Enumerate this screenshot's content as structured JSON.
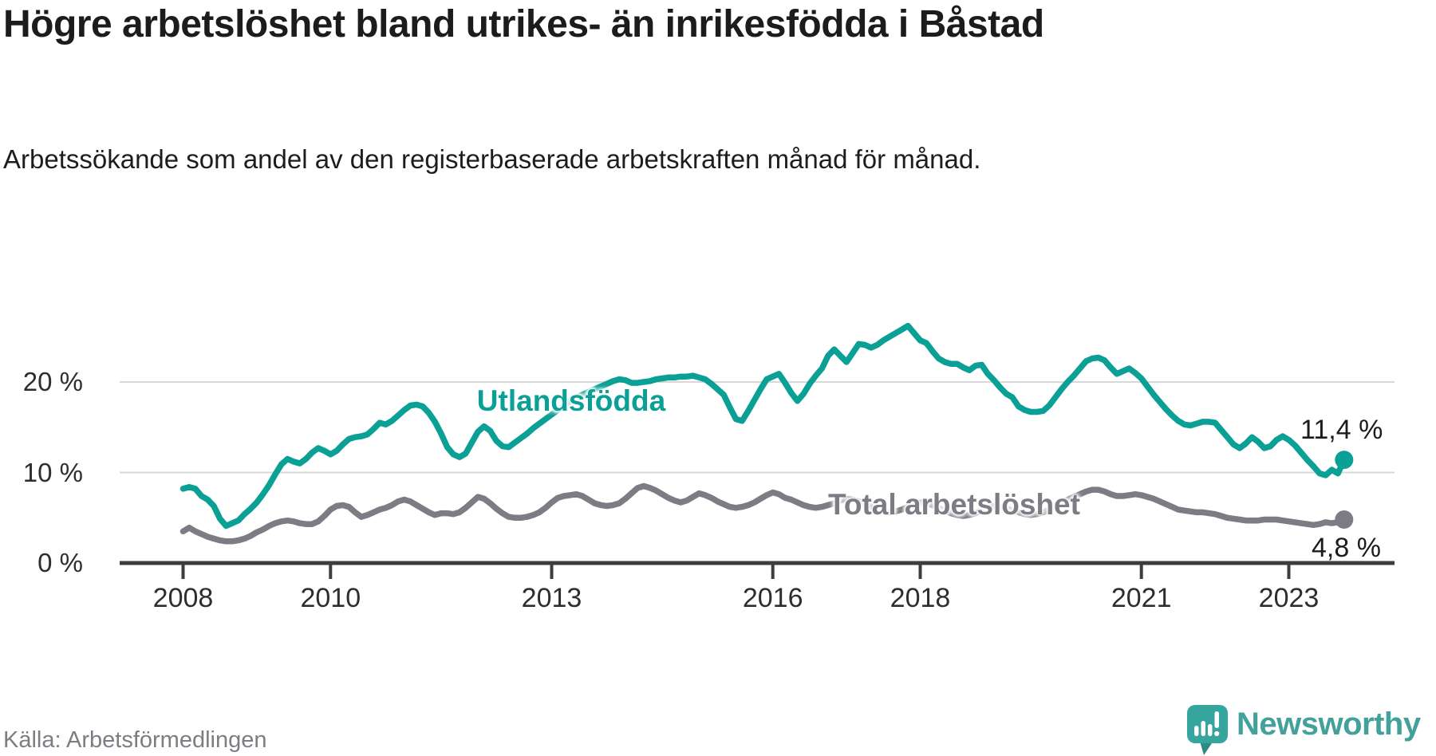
{
  "header": {
    "title": "Högre arbetslöshet bland utrikes- än inrikesfödda i Båstad",
    "subtitle": "Arbetssökande som andel av den registerbaserade arbetskraften månad för månad."
  },
  "style": {
    "accent_teal": "#0aa096",
    "line_gray": "#7d7b83",
    "axis_color": "#3d3d3d",
    "grid_color": "#d8d8d8",
    "text_color": "#1c1c1b",
    "brand_color": "#43a19b"
  },
  "chart_data": {
    "type": "line",
    "title": "Högre arbetslöshet bland utrikes- än inrikesfödda i Båstad",
    "subtitle": "Arbetssökande som andel av den registerbaserade arbetskraften månad för månad.",
    "x_unit": "month",
    "x_start": "2008-01",
    "x_end": "2023-10",
    "grid": "horizontal",
    "legend_position": "inline-labels",
    "x_axis": {
      "tick_years": [
        2008,
        2010,
        2013,
        2016,
        2018,
        2021,
        2023
      ]
    },
    "y_axis": {
      "unit": "%",
      "range": [
        0,
        27.5
      ],
      "ticks": [
        {
          "label": "0 %",
          "value": 0
        },
        {
          "label": "10 %",
          "value": 10
        },
        {
          "label": "20 %",
          "value": 20
        }
      ]
    },
    "series": [
      {
        "name": "Utlandsfödda",
        "slug": "utlandsfodda",
        "color": "#0aa096",
        "end_label": "11,4 %",
        "end_value": 11.4,
        "values": [
          8.2,
          8.4,
          8.2,
          7.4,
          7.0,
          6.3,
          4.9,
          4.1,
          4.4,
          4.7,
          5.4,
          6.0,
          6.7,
          7.6,
          8.6,
          9.8,
          10.9,
          11.5,
          11.2,
          11.0,
          11.5,
          12.2,
          12.7,
          12.4,
          12.0,
          12.4,
          13.1,
          13.7,
          13.9,
          14.0,
          14.2,
          14.8,
          15.5,
          15.3,
          15.7,
          16.3,
          16.9,
          17.4,
          17.5,
          17.3,
          16.6,
          15.6,
          14.3,
          12.8,
          12.0,
          11.7,
          12.1,
          13.3,
          14.5,
          15.1,
          14.6,
          13.5,
          12.9,
          12.8,
          13.3,
          13.8,
          14.3,
          14.9,
          15.4,
          15.9,
          16.4,
          16.9,
          17.4,
          17.9,
          18.3,
          18.6,
          18.9,
          19.2,
          19.5,
          19.8,
          20.1,
          20.3,
          20.2,
          19.9,
          19.9,
          20.0,
          20.1,
          20.3,
          20.4,
          20.5,
          20.5,
          20.6,
          20.6,
          20.7,
          20.5,
          20.3,
          19.8,
          19.2,
          18.6,
          17.2,
          15.9,
          15.7,
          16.8,
          18.0,
          19.2,
          20.3,
          20.6,
          20.9,
          19.9,
          18.8,
          17.9,
          18.7,
          19.8,
          20.7,
          21.5,
          22.9,
          23.6,
          22.9,
          22.2,
          23.2,
          24.2,
          24.1,
          23.8,
          24.1,
          24.6,
          25.0,
          25.4,
          25.8,
          26.2,
          25.4,
          24.6,
          24.3,
          23.4,
          22.6,
          22.2,
          22.0,
          22.0,
          21.6,
          21.3,
          21.8,
          21.9,
          20.9,
          20.2,
          19.4,
          18.7,
          18.3,
          17.3,
          16.9,
          16.7,
          16.7,
          16.8,
          17.4,
          18.3,
          19.2,
          20.0,
          20.7,
          21.5,
          22.3,
          22.6,
          22.7,
          22.4,
          21.6,
          20.9,
          21.2,
          21.5,
          21.0,
          20.4,
          19.5,
          18.6,
          17.8,
          17.0,
          16.3,
          15.7,
          15.3,
          15.2,
          15.4,
          15.6,
          15.6,
          15.5,
          14.7,
          13.9,
          13.1,
          12.7,
          13.2,
          13.9,
          13.4,
          12.7,
          12.9,
          13.6,
          14.0,
          13.6,
          13.0,
          12.2,
          11.4,
          10.7,
          9.9,
          9.7,
          10.3,
          9.9,
          11.4
        ]
      },
      {
        "name": "Total arbetslöshet",
        "slug": "total-arbetsloshet",
        "color": "#7d7b83",
        "end_label": "4,8 %",
        "end_value": 4.8,
        "values": [
          3.5,
          3.9,
          3.5,
          3.2,
          2.9,
          2.7,
          2.5,
          2.4,
          2.4,
          2.5,
          2.7,
          3.0,
          3.4,
          3.7,
          4.1,
          4.4,
          4.6,
          4.7,
          4.6,
          4.4,
          4.3,
          4.3,
          4.6,
          5.2,
          5.9,
          6.3,
          6.4,
          6.2,
          5.6,
          5.1,
          5.3,
          5.6,
          5.9,
          6.1,
          6.4,
          6.8,
          7.0,
          6.8,
          6.4,
          6.0,
          5.6,
          5.3,
          5.5,
          5.5,
          5.4,
          5.6,
          6.1,
          6.7,
          7.3,
          7.1,
          6.6,
          6.0,
          5.5,
          5.1,
          5.0,
          5.0,
          5.1,
          5.3,
          5.6,
          6.1,
          6.7,
          7.2,
          7.4,
          7.5,
          7.6,
          7.4,
          7.0,
          6.6,
          6.4,
          6.3,
          6.4,
          6.6,
          7.1,
          7.7,
          8.3,
          8.5,
          8.3,
          8.0,
          7.6,
          7.2,
          6.9,
          6.7,
          6.9,
          7.3,
          7.7,
          7.5,
          7.2,
          6.8,
          6.5,
          6.2,
          6.1,
          6.2,
          6.4,
          6.7,
          7.1,
          7.5,
          7.8,
          7.6,
          7.2,
          7.0,
          6.7,
          6.4,
          6.2,
          6.1,
          6.2,
          6.4,
          6.6,
          6.9,
          7.1,
          7.0,
          6.8,
          6.5,
          6.2,
          5.9,
          5.7,
          5.6,
          5.7,
          5.9,
          6.2,
          6.5,
          6.7,
          6.6,
          6.4,
          6.1,
          5.8,
          5.5,
          5.3,
          5.2,
          5.3,
          5.5,
          5.8,
          6.1,
          6.3,
          6.2,
          6.0,
          5.8,
          5.6,
          5.4,
          5.3,
          5.4,
          5.6,
          5.9,
          6.3,
          6.7,
          7.0,
          7.3,
          7.6,
          7.9,
          8.1,
          8.1,
          7.9,
          7.6,
          7.4,
          7.4,
          7.5,
          7.6,
          7.5,
          7.3,
          7.1,
          6.8,
          6.5,
          6.2,
          5.9,
          5.8,
          5.7,
          5.6,
          5.6,
          5.5,
          5.4,
          5.2,
          5.0,
          4.9,
          4.8,
          4.7,
          4.7,
          4.7,
          4.8,
          4.8,
          4.8,
          4.7,
          4.6,
          4.5,
          4.4,
          4.3,
          4.2,
          4.3,
          4.5,
          4.4,
          4.5,
          4.8
        ]
      }
    ]
  },
  "footer": {
    "source": "Källa: Arbetsförmedlingen",
    "brand": "Newsworthy"
  }
}
